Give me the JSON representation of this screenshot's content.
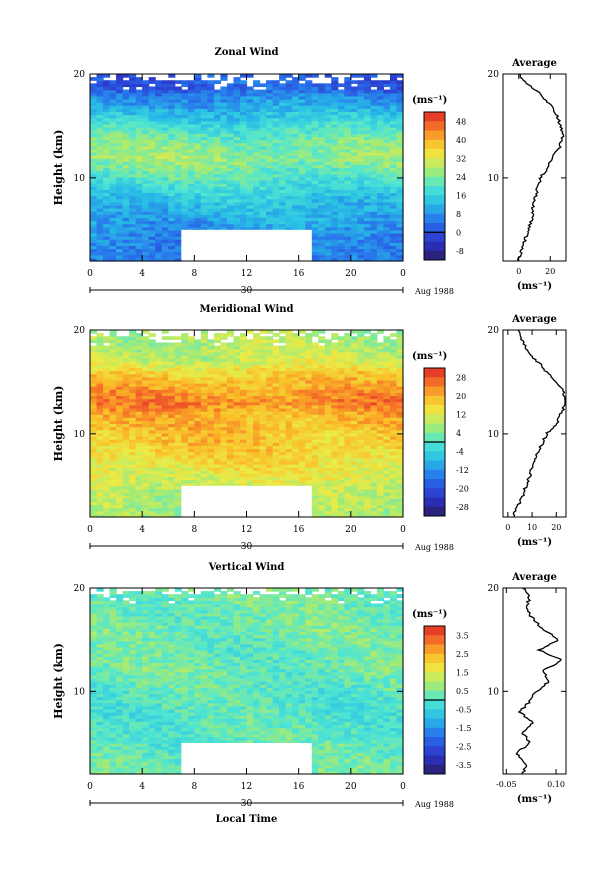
{
  "chart_data": [
    {
      "type": "heatmap",
      "title": "Zonal Wind",
      "ylabel": "Height (km)",
      "x_ticks": [
        "0",
        "4",
        "8",
        "12",
        "16",
        "20",
        "0"
      ],
      "y_ticks": [
        "10",
        "20"
      ],
      "date_label": "30",
      "month_label": "Aug 1988",
      "ylim": [
        2,
        20
      ],
      "xlim": [
        0,
        24
      ],
      "gap": {
        "x": [
          7,
          17
        ],
        "y": [
          2,
          5
        ]
      },
      "colorbar": {
        "unit": "(ms⁻¹)",
        "ticks": [
          "48",
          "40",
          "32",
          "24",
          "16",
          "8",
          "0",
          "-8"
        ],
        "min": -12,
        "max": 52
      },
      "profile_z": [
        2,
        4,
        6,
        8,
        10,
        11,
        12,
        13,
        14,
        15,
        16,
        17,
        18,
        19,
        20
      ],
      "profile_u": [
        0,
        4,
        8,
        10,
        14,
        18,
        22,
        26,
        28,
        27,
        24,
        20,
        14,
        6,
        0
      ],
      "field": {
        "levels_z": [
          2,
          4,
          6,
          8,
          10,
          12,
          14,
          16,
          17,
          18,
          18.5
        ],
        "levels_v": [
          4,
          6,
          10,
          14,
          20,
          26,
          22,
          14,
          10,
          6,
          2
        ]
      },
      "average": {
        "title": "Average",
        "x_ticks": [
          "0",
          "20"
        ],
        "y_ticks": [
          "10",
          "20"
        ],
        "xlim": [
          -10,
          30
        ],
        "unit": "(ms⁻¹)"
      }
    },
    {
      "type": "heatmap",
      "title": "Meridional Wind",
      "ylabel": "Height (km)",
      "x_ticks": [
        "0",
        "4",
        "8",
        "12",
        "16",
        "20",
        "0"
      ],
      "y_ticks": [
        "10",
        "20"
      ],
      "date_label": "30",
      "month_label": "Aug 1988",
      "ylim": [
        2,
        20
      ],
      "xlim": [
        0,
        24
      ],
      "gap": {
        "x": [
          7,
          17
        ],
        "y": [
          2,
          5
        ]
      },
      "colorbar": {
        "unit": "(ms⁻¹)",
        "ticks": [
          "28",
          "20",
          "12",
          "4",
          "-4",
          "-12",
          "-20",
          "-28"
        ],
        "min": -32,
        "max": 32
      },
      "profile_z": [
        2,
        3,
        4,
        6,
        8,
        10,
        11,
        12,
        13,
        14,
        15,
        16,
        17,
        18,
        19,
        20
      ],
      "profile_u": [
        2,
        4,
        6,
        9,
        12,
        16,
        20,
        22,
        24,
        23,
        20,
        16,
        12,
        8,
        6,
        4
      ],
      "field": {
        "levels_z": [
          2,
          4,
          6,
          8,
          10,
          12,
          13,
          14,
          16,
          17,
          18.5
        ],
        "levels_v": [
          6,
          8,
          12,
          16,
          18,
          20,
          24,
          22,
          16,
          10,
          8
        ]
      },
      "average": {
        "title": "Average",
        "x_ticks": [
          "0",
          "10",
          "20"
        ],
        "y_ticks": [
          "10",
          "20"
        ],
        "xlim": [
          -2,
          24
        ],
        "unit": "(ms⁻¹)"
      }
    },
    {
      "type": "heatmap",
      "title": "Vertical Wind",
      "ylabel": "Height (km)",
      "xlabel": "Local Time",
      "x_ticks": [
        "0",
        "4",
        "8",
        "12",
        "16",
        "20",
        "0"
      ],
      "y_ticks": [
        "10",
        "20"
      ],
      "date_label": "30",
      "month_label": "Aug 1988",
      "ylim": [
        2,
        20
      ],
      "xlim": [
        0,
        24
      ],
      "gap": {
        "x": [
          7,
          17
        ],
        "y": [
          2,
          5
        ]
      },
      "colorbar": {
        "unit": "(ms⁻¹)",
        "ticks": [
          "3.5",
          "2.5",
          "1.5",
          "0.5",
          "-0.5",
          "-1.5",
          "-2.5",
          "-3.5"
        ],
        "min": -4,
        "max": 4
      },
      "profile_z": [
        2,
        3,
        4,
        5,
        6,
        7,
        8,
        9,
        10,
        11,
        12,
        13,
        14,
        15,
        16,
        17,
        18,
        19,
        20
      ],
      "profile_u": [
        0,
        0.01,
        -0.02,
        0.02,
        0.0,
        0.03,
        -0.01,
        0.02,
        0.04,
        0.08,
        0.06,
        0.12,
        0.05,
        0.11,
        0.06,
        0.03,
        0.01,
        0.02,
        0.0
      ],
      "field": {
        "levels_z": [
          2,
          4,
          6,
          8,
          10,
          12,
          14,
          16,
          18,
          20
        ],
        "levels_v": [
          0.3,
          0.2,
          0.1,
          0.0,
          0.1,
          0.3,
          0.2,
          0.4,
          0.3,
          0.4
        ]
      },
      "average": {
        "title": "Average",
        "x_ticks": [
          "-0.05",
          "0.10"
        ],
        "y_ticks": [
          "10",
          "20"
        ],
        "xlim": [
          -0.06,
          0.13
        ],
        "unit": "(ms⁻¹)"
      }
    }
  ]
}
